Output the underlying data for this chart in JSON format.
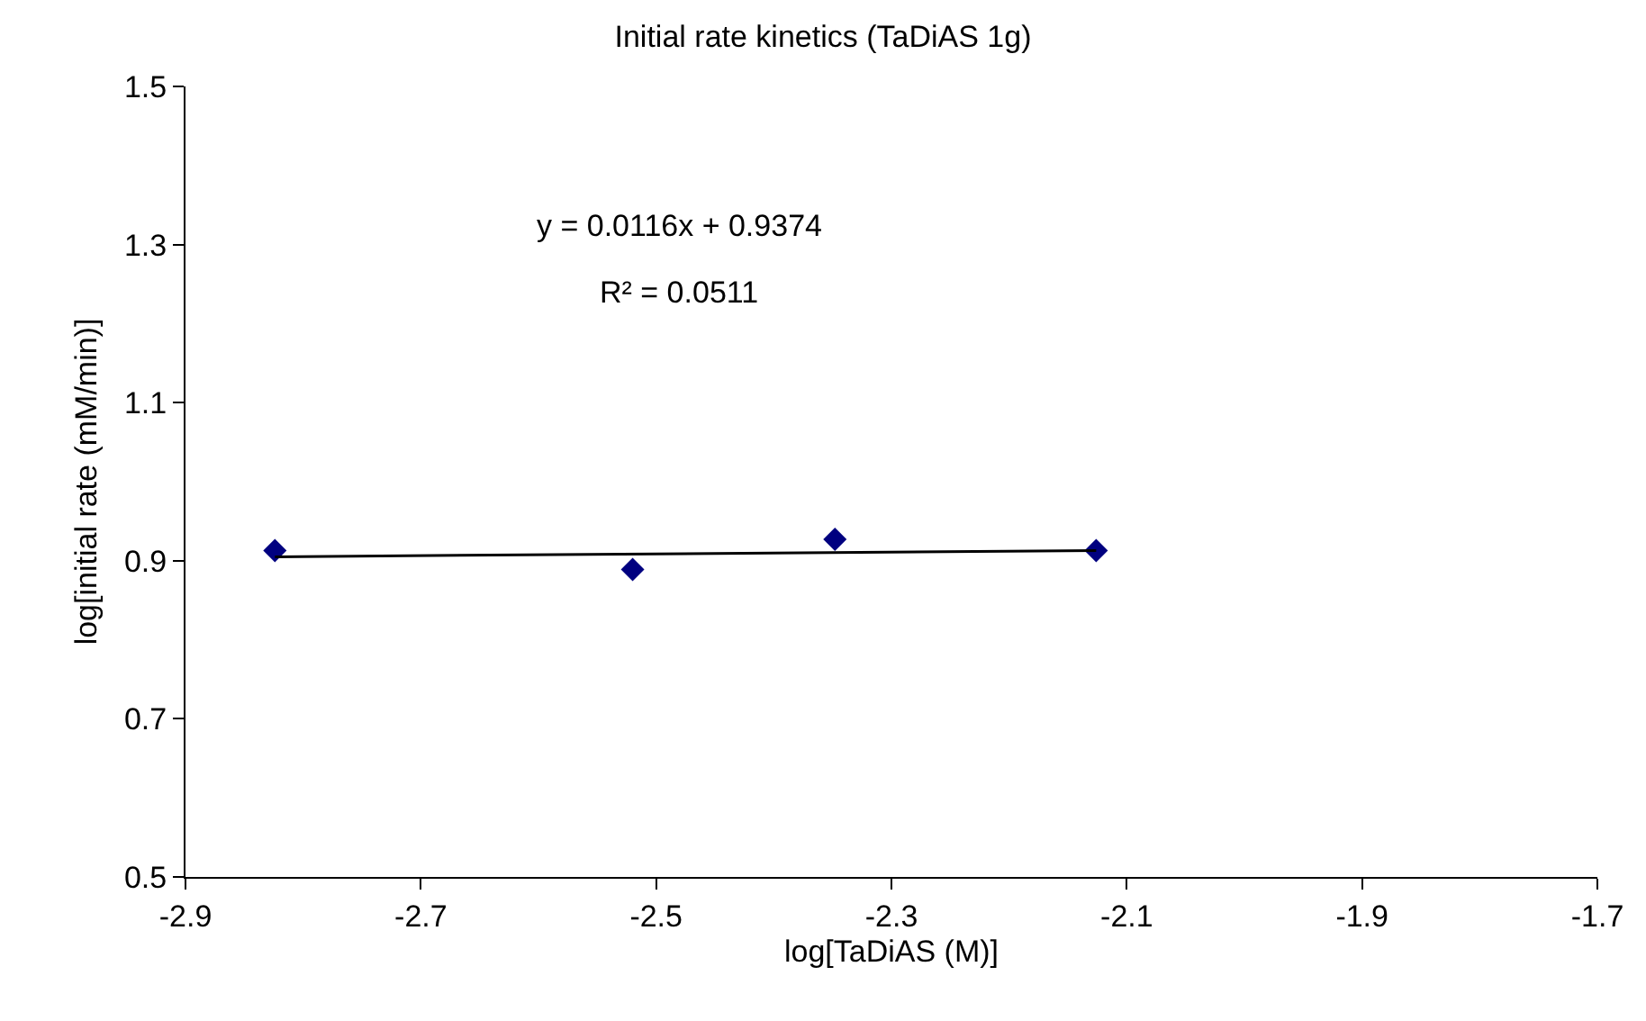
{
  "chart_data": {
    "type": "scatter",
    "title": "Initial rate kinetics (TaDiAS 1g)",
    "xlabel": "log[TaDiAS (M)]",
    "ylabel": "log[initial rate (mM/min)]",
    "x": [
      -2.824,
      -2.52,
      -2.348,
      -2.126
    ],
    "series": [
      {
        "color": "#000080",
        "values": [
          0.913,
          0.889,
          0.927,
          0.913
        ],
        "marker": "diamond"
      },
      {
        "type": "line",
        "color": "#000000",
        "x": [
          -2.824,
          -2.126
        ],
        "values": [
          0.905,
          0.913
        ],
        "marker": "none"
      }
    ],
    "annotations": [
      "y = 0.0116x + 0.9374",
      "R² = 0.0511"
    ],
    "xlim": [
      -2.9,
      -1.7
    ],
    "xticks": [
      -2.9,
      -2.7,
      -2.5,
      -2.3,
      -2.1,
      -1.9,
      -1.7
    ],
    "ylim": [
      0.5,
      1.5
    ],
    "yticks": [
      0.5,
      0.7,
      0.9,
      1.1,
      1.3,
      1.5
    ]
  }
}
